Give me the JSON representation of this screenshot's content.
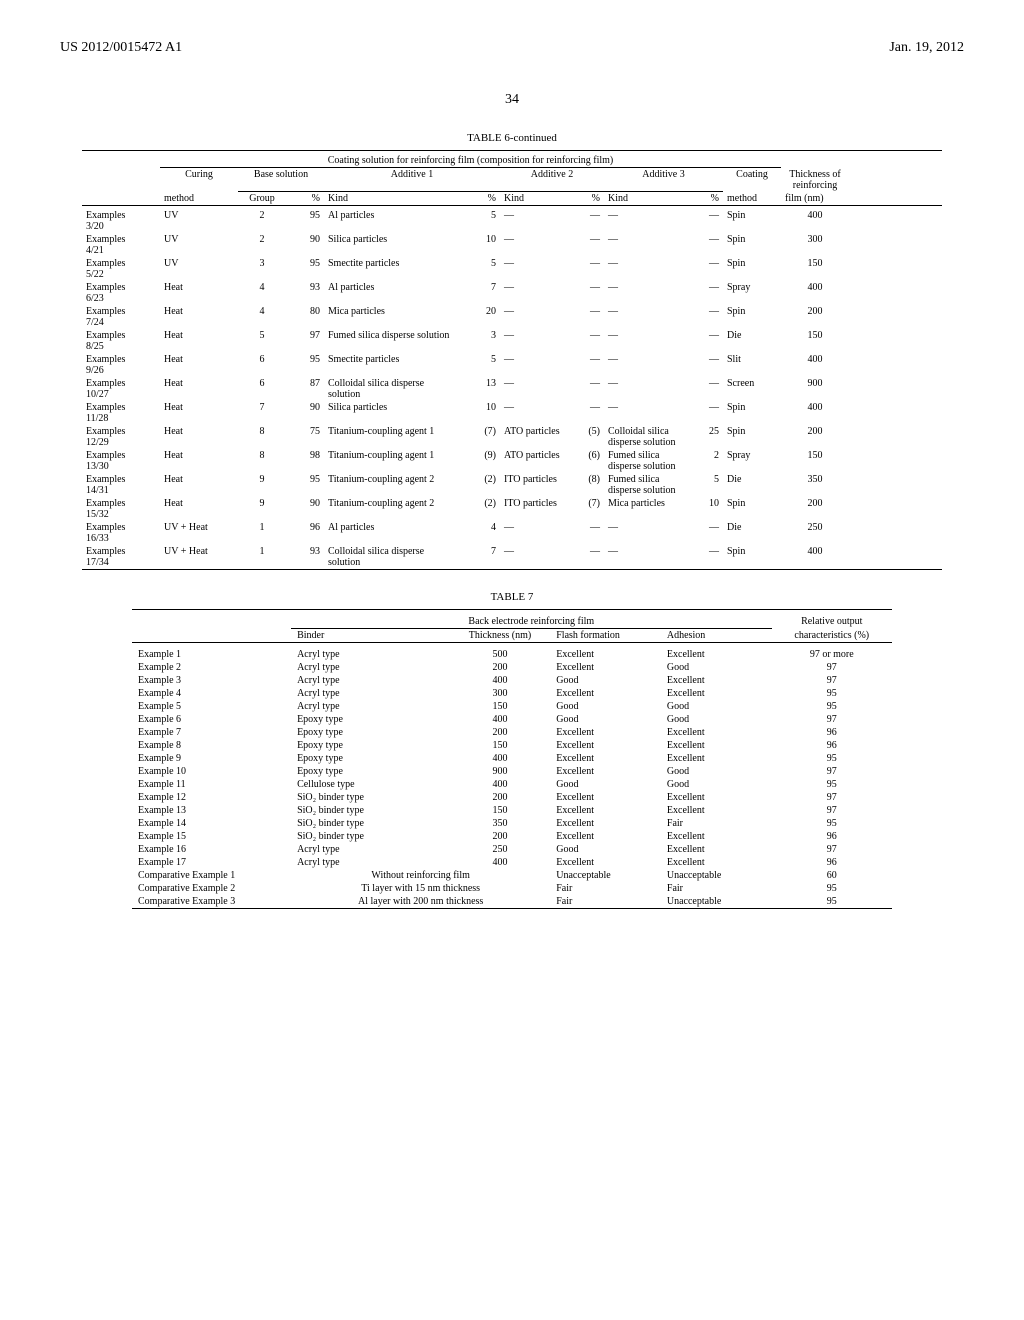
{
  "header": {
    "left": "US 2012/0015472 A1",
    "right": "Jan. 19, 2012",
    "page_number": "34"
  },
  "table6": {
    "caption": "TABLE 6-continued",
    "super_header": "Coating solution for reinforcing film (composition for reinforcing film)",
    "group_headers": {
      "curing": "Curing",
      "base": "Base solution",
      "add1": "Additive 1",
      "add2": "Additive 2",
      "add3": "Additive 3",
      "coating": "Coating",
      "thickness": "Thickness of reinforcing"
    },
    "col_headers": {
      "method": "method",
      "group": "Group",
      "pct": "%",
      "kind": "Kind",
      "film": "film (nm)"
    },
    "rows": [
      {
        "ex": "Examples 3/20",
        "curing": "UV",
        "group": "2",
        "bpct": "95",
        "a1k": "Al particles",
        "a1p": "5",
        "a2k": "—",
        "a2p": "—",
        "a3k": "—",
        "a3p": "—",
        "coat": "Spin",
        "thk": "400"
      },
      {
        "ex": "Examples 4/21",
        "curing": "UV",
        "group": "2",
        "bpct": "90",
        "a1k": "Silica particles",
        "a1p": "10",
        "a2k": "—",
        "a2p": "—",
        "a3k": "—",
        "a3p": "—",
        "coat": "Spin",
        "thk": "300"
      },
      {
        "ex": "Examples 5/22",
        "curing": "UV",
        "group": "3",
        "bpct": "95",
        "a1k": "Smectite particles",
        "a1p": "5",
        "a2k": "—",
        "a2p": "—",
        "a3k": "—",
        "a3p": "—",
        "coat": "Spin",
        "thk": "150"
      },
      {
        "ex": "Examples 6/23",
        "curing": "Heat",
        "group": "4",
        "bpct": "93",
        "a1k": "Al particles",
        "a1p": "7",
        "a2k": "—",
        "a2p": "—",
        "a3k": "—",
        "a3p": "—",
        "coat": "Spray",
        "thk": "400"
      },
      {
        "ex": "Examples 7/24",
        "curing": "Heat",
        "group": "4",
        "bpct": "80",
        "a1k": "Mica particles",
        "a1p": "20",
        "a2k": "—",
        "a2p": "—",
        "a3k": "—",
        "a3p": "—",
        "coat": "Spin",
        "thk": "200"
      },
      {
        "ex": "Examples 8/25",
        "curing": "Heat",
        "group": "5",
        "bpct": "97",
        "a1k": "Fumed silica disperse solution",
        "a1p": "3",
        "a2k": "—",
        "a2p": "—",
        "a3k": "—",
        "a3p": "—",
        "coat": "Die",
        "thk": "150"
      },
      {
        "ex": "Examples 9/26",
        "curing": "Heat",
        "group": "6",
        "bpct": "95",
        "a1k": "Smectite particles",
        "a1p": "5",
        "a2k": "—",
        "a2p": "—",
        "a3k": "—",
        "a3p": "—",
        "coat": "Slit",
        "thk": "400"
      },
      {
        "ex": "Examples 10/27",
        "curing": "Heat",
        "group": "6",
        "bpct": "87",
        "a1k": "Colloidal silica disperse solution",
        "a1p": "13",
        "a2k": "—",
        "a2p": "—",
        "a3k": "—",
        "a3p": "—",
        "coat": "Screen",
        "thk": "900"
      },
      {
        "ex": "Examples 11/28",
        "curing": "Heat",
        "group": "7",
        "bpct": "90",
        "a1k": "Silica particles",
        "a1p": "10",
        "a2k": "—",
        "a2p": "—",
        "a3k": "—",
        "a3p": "—",
        "coat": "Spin",
        "thk": "400"
      },
      {
        "ex": "Examples 12/29",
        "curing": "Heat",
        "group": "8",
        "bpct": "75",
        "a1k": "Titanium-coupling agent 1",
        "a1p": "(7)",
        "a2k": "ATO particles",
        "a2p": "(5)",
        "a3k": "Colloidal silica disperse solution",
        "a3p": "25",
        "coat": "Spin",
        "thk": "200"
      },
      {
        "ex": "Examples 13/30",
        "curing": "Heat",
        "group": "8",
        "bpct": "98",
        "a1k": "Titanium-coupling agent 1",
        "a1p": "(9)",
        "a2k": "ATO particles",
        "a2p": "(6)",
        "a3k": "Fumed silica disperse solution",
        "a3p": "2",
        "coat": "Spray",
        "thk": "150"
      },
      {
        "ex": "Examples 14/31",
        "curing": "Heat",
        "group": "9",
        "bpct": "95",
        "a1k": "Titanium-coupling agent 2",
        "a1p": "(2)",
        "a2k": "ITO particles",
        "a2p": "(8)",
        "a3k": "Fumed silica disperse solution",
        "a3p": "5",
        "coat": "Die",
        "thk": "350"
      },
      {
        "ex": "Examples 15/32",
        "curing": "Heat",
        "group": "9",
        "bpct": "90",
        "a1k": "Titanium-coupling agent 2",
        "a1p": "(2)",
        "a2k": "ITO particles",
        "a2p": "(7)",
        "a3k": "Mica particles",
        "a3p": "10",
        "coat": "Spin",
        "thk": "200"
      },
      {
        "ex": "Examples 16/33",
        "curing": "UV + Heat",
        "group": "1",
        "bpct": "96",
        "a1k": "Al particles",
        "a1p": "4",
        "a2k": "—",
        "a2p": "—",
        "a3k": "—",
        "a3p": "—",
        "coat": "Die",
        "thk": "250"
      },
      {
        "ex": "Examples 17/34",
        "curing": "UV + Heat",
        "group": "1",
        "bpct": "93",
        "a1k": "Colloidal silica disperse solution",
        "a1p": "7",
        "a2k": "—",
        "a2p": "—",
        "a3k": "—",
        "a3p": "—",
        "coat": "Spin",
        "thk": "400"
      }
    ]
  },
  "table7": {
    "caption": "TABLE 7",
    "group_headers": {
      "back": "Back electrode reinforcing film",
      "rel": "Relative output"
    },
    "col_headers": {
      "binder": "Binder",
      "thickness": "Thickness (nm)",
      "flash": "Flash formation",
      "adhesion": "Adhesion",
      "char": "characteristics (%)"
    },
    "rows": [
      {
        "ex": "Example 1",
        "binder": "Acryl type",
        "thk": "500",
        "flash": "Excellent",
        "adh": "Excellent",
        "chr": "97 or more"
      },
      {
        "ex": "Example 2",
        "binder": "Acryl type",
        "thk": "200",
        "flash": "Excellent",
        "adh": "Good",
        "chr": "97"
      },
      {
        "ex": "Example 3",
        "binder": "Acryl type",
        "thk": "400",
        "flash": "Good",
        "adh": "Excellent",
        "chr": "97"
      },
      {
        "ex": "Example 4",
        "binder": "Acryl type",
        "thk": "300",
        "flash": "Excellent",
        "adh": "Excellent",
        "chr": "95"
      },
      {
        "ex": "Example 5",
        "binder": "Acryl type",
        "thk": "150",
        "flash": "Good",
        "adh": "Good",
        "chr": "95"
      },
      {
        "ex": "Example 6",
        "binder": "Epoxy type",
        "thk": "400",
        "flash": "Good",
        "adh": "Good",
        "chr": "97"
      },
      {
        "ex": "Example 7",
        "binder": "Epoxy type",
        "thk": "200",
        "flash": "Excellent",
        "adh": "Excellent",
        "chr": "96"
      },
      {
        "ex": "Example 8",
        "binder": "Epoxy type",
        "thk": "150",
        "flash": "Excellent",
        "adh": "Excellent",
        "chr": "96"
      },
      {
        "ex": "Example 9",
        "binder": "Epoxy type",
        "thk": "400",
        "flash": "Excellent",
        "adh": "Excellent",
        "chr": "95"
      },
      {
        "ex": "Example 10",
        "binder": "Epoxy type",
        "thk": "900",
        "flash": "Excellent",
        "adh": "Good",
        "chr": "97"
      },
      {
        "ex": "Example 11",
        "binder": "Cellulose type",
        "thk": "400",
        "flash": "Good",
        "adh": "Good",
        "chr": "95"
      },
      {
        "ex": "Example 12",
        "binder": "SiO₂ binder type",
        "thk": "200",
        "flash": "Excellent",
        "adh": "Excellent",
        "chr": "97"
      },
      {
        "ex": "Example 13",
        "binder": "SiO₂ binder type",
        "thk": "150",
        "flash": "Excellent",
        "adh": "Excellent",
        "chr": "97"
      },
      {
        "ex": "Example 14",
        "binder": "SiO₂ binder type",
        "thk": "350",
        "flash": "Excellent",
        "adh": "Fair",
        "chr": "95"
      },
      {
        "ex": "Example 15",
        "binder": "SiO₂ binder type",
        "thk": "200",
        "flash": "Excellent",
        "adh": "Excellent",
        "chr": "96"
      },
      {
        "ex": "Example 16",
        "binder": "Acryl type",
        "thk": "250",
        "flash": "Good",
        "adh": "Excellent",
        "chr": "97"
      },
      {
        "ex": "Example 17",
        "binder": "Acryl type",
        "thk": "400",
        "flash": "Excellent",
        "adh": "Excellent",
        "chr": "96"
      },
      {
        "ex": "Comparative Example 1",
        "binder": "Without reinforcing film",
        "thk": "",
        "flash": "Unacceptable",
        "adh": "Unacceptable",
        "chr": "60"
      },
      {
        "ex": "Comparative Example 2",
        "binder": "Ti layer with 15 nm thickness",
        "thk": "",
        "flash": "Fair",
        "adh": "Fair",
        "chr": "95"
      },
      {
        "ex": "Comparative Example 3",
        "binder": "Al layer with 200 nm thickness",
        "thk": "",
        "flash": "Fair",
        "adh": "Unacceptable",
        "chr": "95"
      }
    ]
  }
}
